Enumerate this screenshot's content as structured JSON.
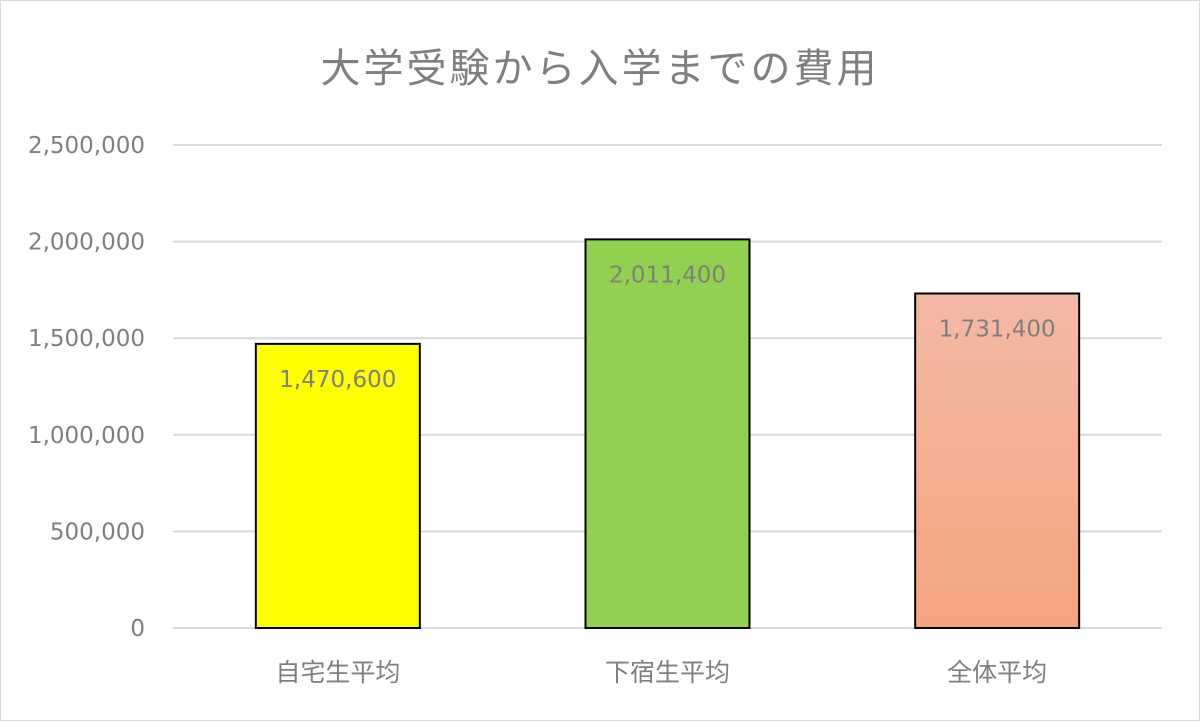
{
  "chart_data": {
    "type": "bar",
    "title": "大学受験から入学までの費用",
    "xlabel": "",
    "ylabel": "",
    "categories": [
      "自宅生平均",
      "下宿生平均",
      "全体平均"
    ],
    "values": [
      1470600,
      2011400,
      1731400
    ],
    "value_labels": [
      "1,470,600",
      "2,011,400",
      "1,731,400"
    ],
    "ylim": [
      0,
      2500000
    ],
    "yticks": [
      0,
      500000,
      1000000,
      1500000,
      2000000,
      2500000
    ],
    "ytick_labels": [
      "0",
      "500,000",
      "1,000,000",
      "1,500,000",
      "2,000,000",
      "2,500,000"
    ],
    "grid": true,
    "legend": "none",
    "bar_colors": [
      "#ffff00",
      "#92d050",
      "#f4a57f"
    ],
    "bar_gradient_top": "#f3b9a6",
    "bar_outline": "#000000",
    "gridline_color": "#d9d9d9",
    "text_color": "#7f7f7f"
  }
}
